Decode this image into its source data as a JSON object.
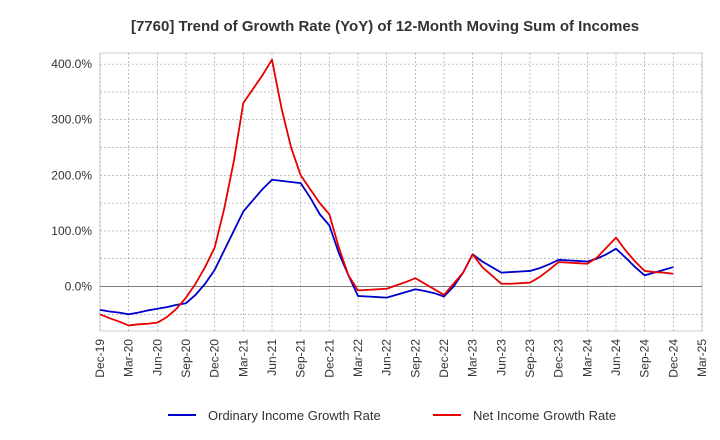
{
  "chart_data": {
    "type": "line",
    "title": "[7760]  Trend of Growth Rate (YoY) of 12-Month Moving Sum of Incomes",
    "xlabel": "",
    "ylabel": "",
    "x_tick_labels": [
      "Dec-19",
      "Mar-20",
      "Jun-20",
      "Sep-20",
      "Dec-20",
      "Mar-21",
      "Jun-21",
      "Sep-21",
      "Dec-21",
      "Mar-22",
      "Jun-22",
      "Sep-22",
      "Dec-22",
      "Mar-23",
      "Jun-23",
      "Sep-23",
      "Dec-23",
      "Mar-24",
      "Jun-24",
      "Sep-24",
      "Dec-24",
      "Mar-25"
    ],
    "y_ticks": [
      0,
      100,
      200,
      300,
      400
    ],
    "y_tick_labels": [
      "0.0%",
      "100.0%",
      "200.0%",
      "300.0%",
      "400.0%"
    ],
    "ylim": [
      -80,
      420
    ],
    "grid": true,
    "legend_position": "bottom",
    "x": [
      "Dec-19",
      "Jan-20",
      "Feb-20",
      "Mar-20",
      "Apr-20",
      "May-20",
      "Jun-20",
      "Jul-20",
      "Aug-20",
      "Sep-20",
      "Oct-20",
      "Nov-20",
      "Dec-20",
      "Jan-21",
      "Feb-21",
      "Mar-21",
      "Apr-21",
      "May-21",
      "Jun-21",
      "Jul-21",
      "Aug-21",
      "Sep-21",
      "Oct-21",
      "Nov-21",
      "Dec-21",
      "Jan-22",
      "Feb-22",
      "Mar-22",
      "Apr-22",
      "May-22",
      "Jun-22",
      "Jul-22",
      "Aug-22",
      "Sep-22",
      "Oct-22",
      "Nov-22",
      "Dec-22",
      "Jan-23",
      "Feb-23",
      "Mar-23",
      "Apr-23",
      "May-23",
      "Jun-23",
      "Jul-23",
      "Aug-23",
      "Sep-23",
      "Oct-23",
      "Nov-23",
      "Dec-23",
      "Jan-24",
      "Feb-24",
      "Mar-24",
      "Apr-24",
      "May-24",
      "Jun-24",
      "Jul-24",
      "Aug-24",
      "Sep-24",
      "Oct-24",
      "Nov-24",
      "Dec-24"
    ],
    "series": [
      {
        "name": "Ordinary Income Growth Rate",
        "color": "#0000cc",
        "values": [
          -42,
          -45,
          -47,
          -50,
          -47,
          -43,
          -40,
          -37,
          -33,
          -30,
          -15,
          5,
          30,
          65,
          100,
          135,
          155,
          175,
          192,
          190,
          188,
          186,
          160,
          130,
          110,
          60,
          20,
          -17,
          -18,
          -19,
          -20,
          -15,
          -10,
          -5,
          -8,
          -12,
          -18,
          0,
          25,
          58,
          45,
          35,
          25,
          26,
          27,
          28,
          33,
          40,
          48,
          47,
          46,
          45,
          50,
          58,
          68,
          52,
          35,
          20,
          25,
          30,
          35
        ]
      },
      {
        "name": "Net Income Growth Rate",
        "color": "#e60000",
        "values": [
          -50,
          -57,
          -63,
          -70,
          -68,
          -67,
          -65,
          -55,
          -40,
          -20,
          5,
          35,
          70,
          140,
          225,
          330,
          355,
          380,
          408,
          320,
          250,
          200,
          175,
          150,
          130,
          70,
          20,
          -7,
          -6,
          -5,
          -4,
          2,
          8,
          15,
          5,
          -5,
          -15,
          5,
          25,
          58,
          35,
          20,
          5,
          5,
          6,
          7,
          17,
          30,
          44,
          43,
          42,
          41,
          52,
          70,
          88,
          65,
          45,
          28,
          26,
          25,
          23
        ]
      }
    ]
  }
}
